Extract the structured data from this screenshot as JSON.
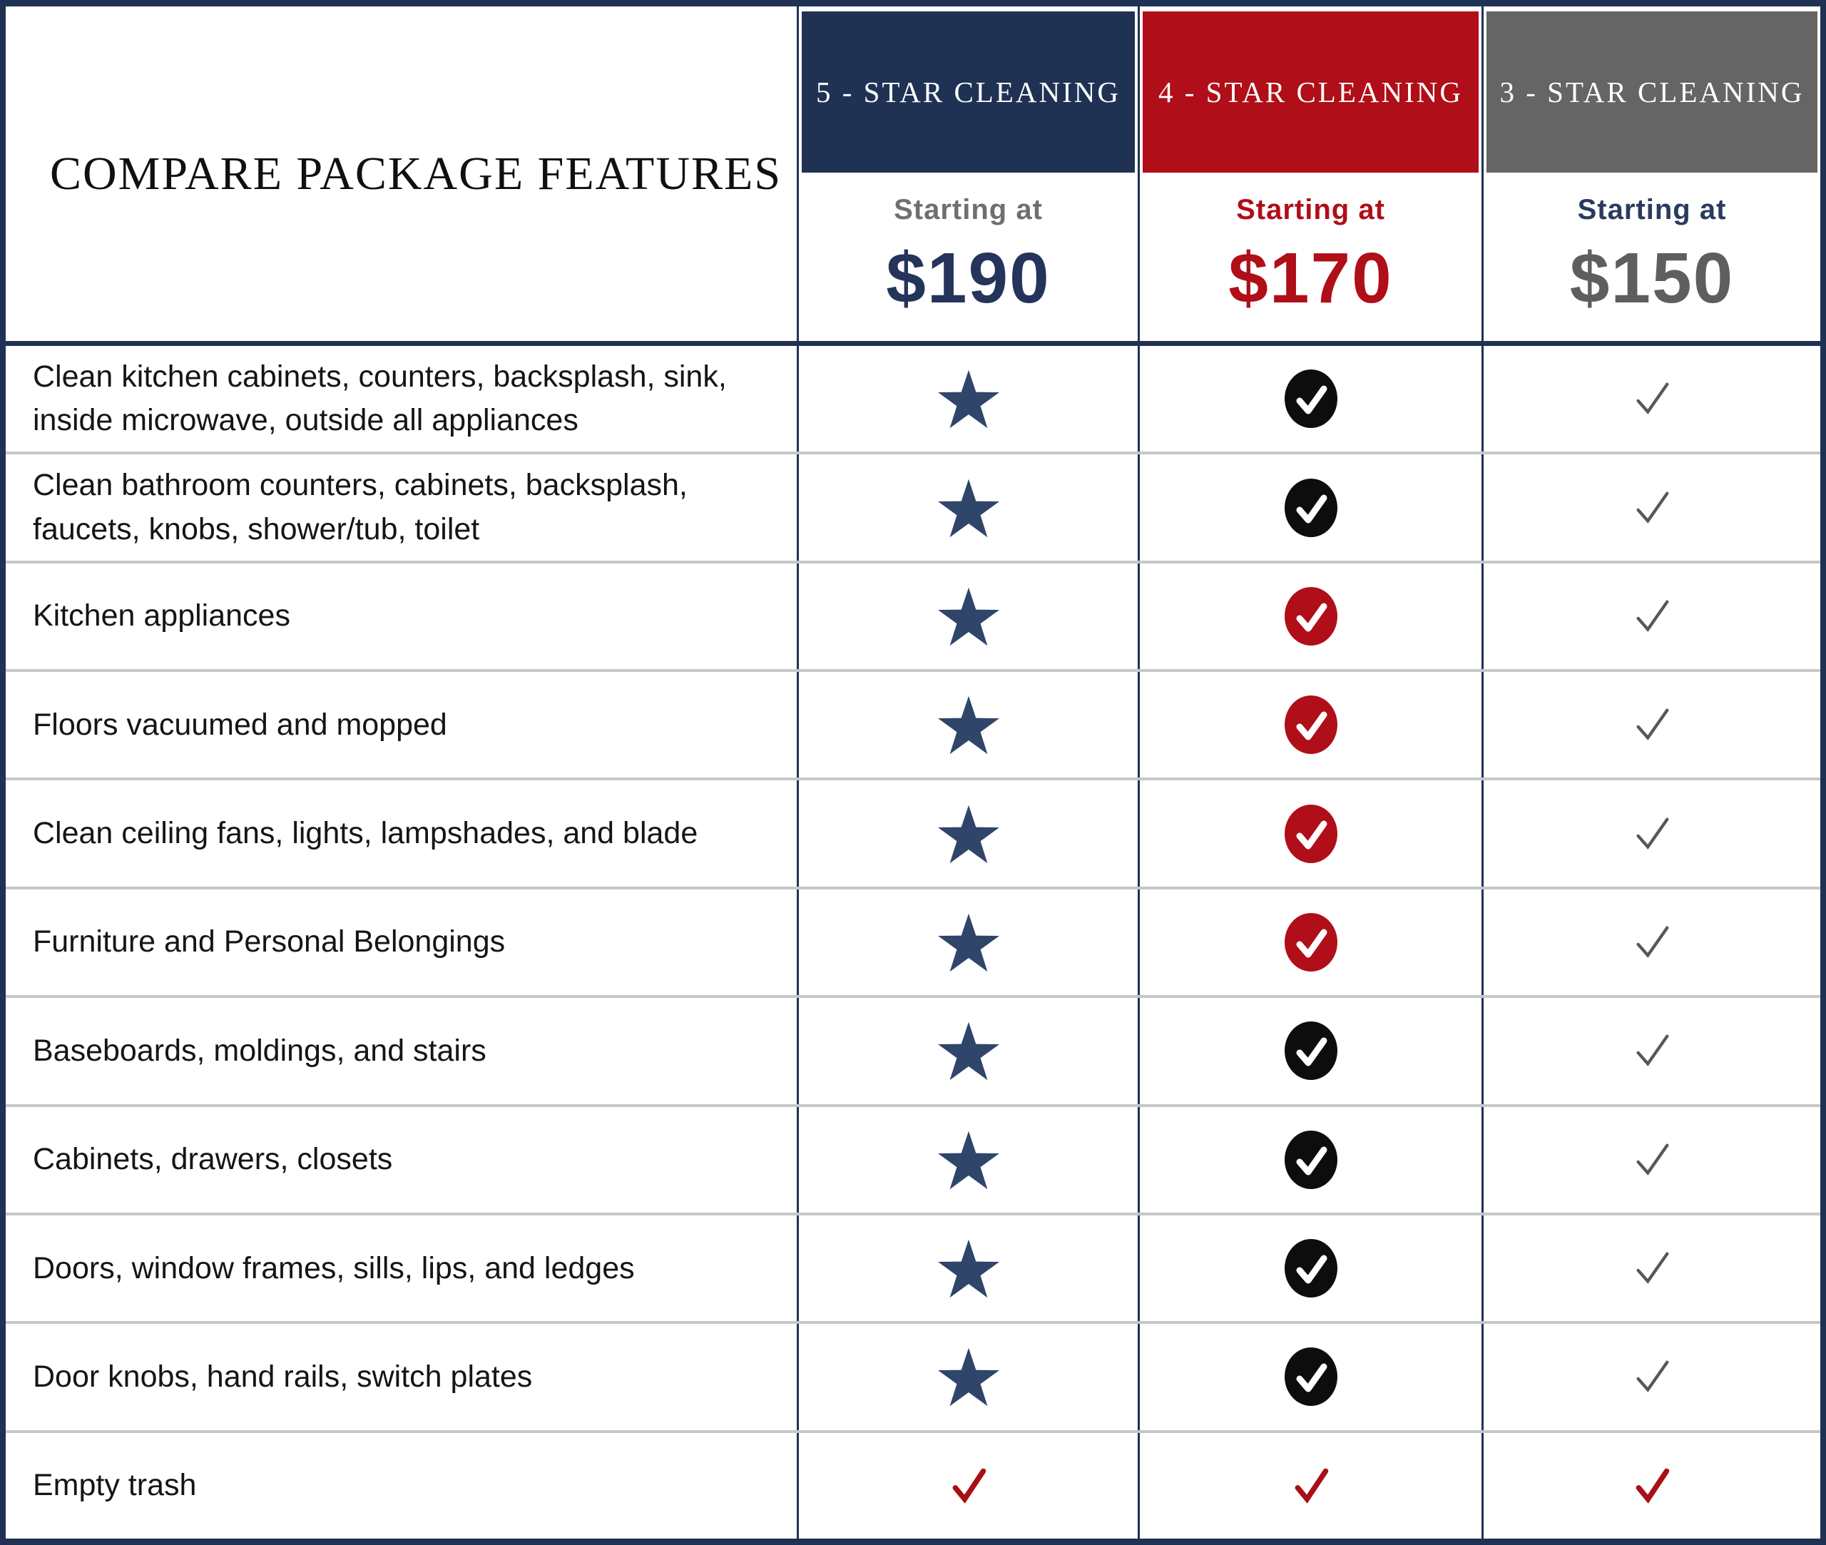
{
  "title": "COMPARE PACKAGE FEATURES",
  "packages": [
    {
      "name": "5 - STAR CLEANING",
      "starting_label": "Starting at",
      "price": "$190",
      "header_bg": "#1F3254",
      "starting_color": "#6F6F6F",
      "price_color": "#24345A"
    },
    {
      "name": "4 - STAR CLEANING",
      "starting_label": "Starting at",
      "price": "$170",
      "header_bg": "#B00E18",
      "starting_color": "#B00E18",
      "price_color": "#B00E18"
    },
    {
      "name": "3 - STAR CLEANING",
      "starting_label": "Starting at",
      "price": "$150",
      "header_bg": "#656565",
      "starting_color": "#2B3B5E",
      "price_color": "#5E5E5E"
    }
  ],
  "features": [
    {
      "name": "Clean kitchen cabinets, counters, backsplash, sink, inside microwave, outside all appliances",
      "tier5": "star",
      "tier4": "circle-check-black",
      "tier3": "check-gray"
    },
    {
      "name": "Clean bathroom counters, cabinets, backsplash, faucets, knobs, shower/tub, toilet",
      "tier5": "star",
      "tier4": "circle-check-black",
      "tier3": "check-gray"
    },
    {
      "name": "Kitchen appliances",
      "tier5": "star",
      "tier4": "circle-check-red",
      "tier3": "check-gray"
    },
    {
      "name": "Floors vacuumed and mopped",
      "tier5": "star",
      "tier4": "circle-check-red",
      "tier3": "check-gray"
    },
    {
      "name": "Clean ceiling fans, lights, lampshades, and blade",
      "tier5": "star",
      "tier4": "circle-check-red",
      "tier3": "check-gray"
    },
    {
      "name": "Furniture and Personal Belongings",
      "tier5": "star",
      "tier4": "circle-check-red",
      "tier3": "check-gray"
    },
    {
      "name": "Baseboards, moldings, and stairs",
      "tier5": "star",
      "tier4": "circle-check-black",
      "tier3": "check-gray"
    },
    {
      "name": "Cabinets, drawers, closets",
      "tier5": "star",
      "tier4": "circle-check-black",
      "tier3": "check-gray"
    },
    {
      "name": "Doors, window frames, sills, lips, and ledges",
      "tier5": "star",
      "tier4": "circle-check-black",
      "tier3": "check-gray"
    },
    {
      "name": "Door knobs, hand rails, switch plates",
      "tier5": "star",
      "tier4": "circle-check-black",
      "tier3": "check-gray"
    },
    {
      "name": "Empty trash",
      "tier5": "check-red",
      "tier4": "check-red",
      "tier3": "check-red"
    }
  ],
  "colors": {
    "navy": "#1F3254",
    "separator": "#C7C7C7",
    "star": "#2F4569",
    "circle_black": "#0D0D0D",
    "circle_red": "#B00E18",
    "check_gray": "#575757",
    "check_red": "#A80F16"
  }
}
